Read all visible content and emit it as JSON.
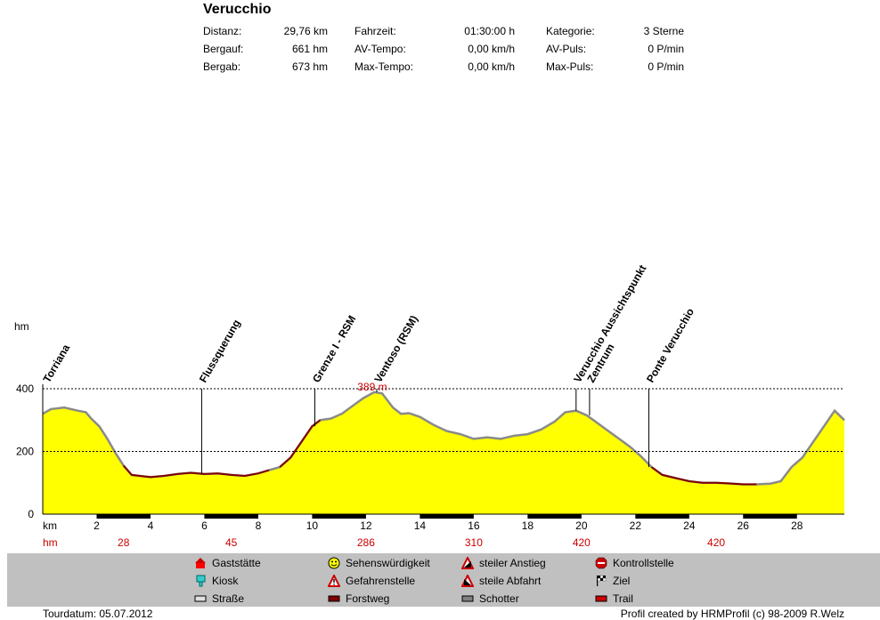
{
  "header": {
    "title": "Verucchio",
    "stats": [
      {
        "label": "Distanz:",
        "value": "29,76 km"
      },
      {
        "label": "Bergauf:",
        "value": "661 hm"
      },
      {
        "label": "Bergab:",
        "value": "673 hm"
      },
      {
        "label": "Fahrzeit:",
        "value": "01:30:00 h"
      },
      {
        "label": "AV-Tempo:",
        "value": "0,00 km/h"
      },
      {
        "label": "Max-Tempo:",
        "value": "0,00 km/h"
      },
      {
        "label": "Kategorie:",
        "value": "3 Sterne"
      },
      {
        "label": "AV-Puls:",
        "value": "0 P/min"
      },
      {
        "label": "Max-Puls:",
        "value": "0 P/min"
      }
    ]
  },
  "chart_data": {
    "type": "area",
    "ylabel": "hm",
    "xlabel": "km",
    "xlim": [
      0,
      29.76
    ],
    "ylim": [
      0,
      400
    ],
    "yticks": [
      0,
      200,
      400
    ],
    "xticks": [
      2,
      4,
      6,
      8,
      10,
      12,
      14,
      16,
      18,
      20,
      22,
      24,
      26,
      28
    ],
    "grid": "dashed at 200 and 400",
    "fill_color": "#ffff00",
    "x": [
      0,
      0.3,
      0.8,
      1.3,
      1.6,
      1.8,
      2.1,
      2.4,
      2.7,
      3.0,
      3.3,
      3.6,
      4.0,
      4.5,
      5.0,
      5.5,
      6.0,
      6.5,
      7.0,
      7.5,
      8.0,
      8.4,
      8.8,
      9.2,
      9.6,
      10.0,
      10.3,
      10.7,
      11.1,
      11.5,
      11.9,
      12.3,
      12.6,
      13.0,
      13.3,
      13.6,
      14.0,
      14.5,
      15.0,
      15.5,
      16.0,
      16.5,
      17.0,
      17.5,
      18.0,
      18.5,
      19.0,
      19.4,
      19.8,
      20.2,
      20.6,
      21.0,
      21.4,
      21.8,
      22.2,
      22.6,
      23.0,
      23.5,
      24.0,
      24.5,
      25.0,
      25.5,
      26.0,
      26.5,
      27.0,
      27.4,
      27.8,
      28.2,
      28.6,
      29.0,
      29.4,
      29.76
    ],
    "y": [
      320,
      335,
      340,
      330,
      325,
      305,
      280,
      240,
      195,
      155,
      125,
      122,
      118,
      122,
      128,
      132,
      128,
      130,
      125,
      122,
      130,
      140,
      150,
      180,
      230,
      280,
      300,
      305,
      320,
      345,
      370,
      389,
      385,
      340,
      320,
      322,
      310,
      285,
      265,
      255,
      240,
      245,
      240,
      250,
      255,
      270,
      295,
      325,
      330,
      315,
      290,
      265,
      240,
      215,
      185,
      150,
      125,
      115,
      105,
      100,
      100,
      98,
      95,
      95,
      97,
      105,
      150,
      180,
      230,
      280,
      330,
      300
    ],
    "peak_label": "389 m",
    "waypoints": [
      {
        "name": "Torriana",
        "km": 0.1
      },
      {
        "name": "Flussquerung",
        "km": 5.9
      },
      {
        "name": "Grenze I - RSM",
        "km": 10.1
      },
      {
        "name": "Ventoso (RSM)",
        "km": 12.4
      },
      {
        "name": "Verucchio Aussichtspunkt",
        "km": 19.8
      },
      {
        "name": "Zentrum",
        "km": 20.3
      },
      {
        "name": "Ponte Verucchio",
        "km": 22.5
      }
    ],
    "section_hm": {
      "label": "hm",
      "values": [
        "28",
        "45",
        "286",
        "310",
        "420",
        "420"
      ]
    }
  },
  "legend": [
    {
      "label": "Gaststätte",
      "icon": "restaurant-icon"
    },
    {
      "label": "Kiosk",
      "icon": "kiosk-icon"
    },
    {
      "label": "Straße",
      "icon": "road-icon",
      "color": "#e0e0e0"
    },
    {
      "label": "Sehenswürdigkeit",
      "icon": "smiley-icon"
    },
    {
      "label": "Gefahrenstelle",
      "icon": "warning-icon"
    },
    {
      "label": "Forstweg",
      "icon": "forest-road-icon",
      "color": "#800000"
    },
    {
      "label": "steiler Anstieg",
      "icon": "steep-climb-icon"
    },
    {
      "label": "steile Abfahrt",
      "icon": "steep-descent-icon"
    },
    {
      "label": "Schotter",
      "icon": "gravel-icon",
      "color": "#808080"
    },
    {
      "label": "Kontrollstelle",
      "icon": "stop-icon"
    },
    {
      "label": "Ziel",
      "icon": "finish-flag-icon"
    },
    {
      "label": "Trail",
      "icon": "trail-icon",
      "color": "#cc0000"
    }
  ],
  "footer": {
    "tourdate": "Tourdatum: 05.07.2012",
    "credit": "Profil created by HRMProfil (c) 98-2009 R.Welz"
  }
}
